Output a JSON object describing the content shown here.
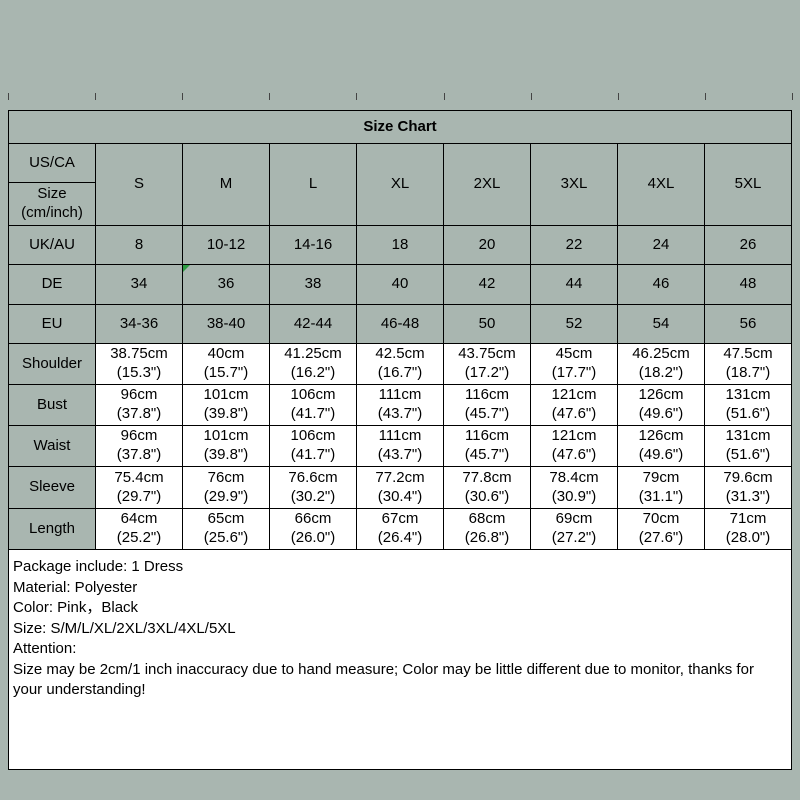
{
  "chart_data": {
    "type": "table",
    "title": "Size Chart",
    "corner_top": "US/CA",
    "corner_bottom": "Size\n(cm/inch)",
    "size_columns": [
      "S",
      "M",
      "L",
      "XL",
      "2XL",
      "3XL",
      "4XL",
      "5XL"
    ],
    "rows": [
      {
        "label": "UK/AU",
        "shaded": true,
        "values": [
          "8",
          "10-12",
          "14-16",
          "18",
          "20",
          "22",
          "24",
          "26"
        ]
      },
      {
        "label": "DE",
        "shaded": true,
        "marker_col": 1,
        "values": [
          "34",
          "36",
          "38",
          "40",
          "42",
          "44",
          "46",
          "48"
        ]
      },
      {
        "label": "EU",
        "shaded": true,
        "values": [
          "34-36",
          "38-40",
          "42-44",
          "46-48",
          "50",
          "52",
          "54",
          "56"
        ]
      },
      {
        "label": "Shoulder",
        "shaded": false,
        "values": [
          "38.75cm\n(15.3\")",
          "40cm\n(15.7\")",
          "41.25cm\n(16.2\")",
          "42.5cm\n(16.7\")",
          "43.75cm\n(17.2\")",
          "45cm\n(17.7\")",
          "46.25cm\n(18.2\")",
          "47.5cm\n(18.7\")"
        ]
      },
      {
        "label": "Bust",
        "shaded": false,
        "values": [
          "96cm\n(37.8\")",
          "101cm\n(39.8\")",
          "106cm\n(41.7\")",
          "111cm\n(43.7\")",
          "116cm\n(45.7\")",
          "121cm\n(47.6\")",
          "126cm\n(49.6\")",
          "131cm\n(51.6\")"
        ]
      },
      {
        "label": "Waist",
        "shaded": false,
        "values": [
          "96cm\n(37.8\")",
          "101cm\n(39.8\")",
          "106cm\n(41.7\")",
          "111cm\n(43.7\")",
          "116cm\n(45.7\")",
          "121cm\n(47.6\")",
          "126cm\n(49.6\")",
          "131cm\n(51.6\")"
        ]
      },
      {
        "label": "Sleeve",
        "shaded": false,
        "values": [
          "75.4cm\n(29.7\")",
          "76cm\n(29.9\")",
          "76.6cm\n(30.2\")",
          "77.2cm\n(30.4\")",
          "77.8cm\n(30.6\")",
          "78.4cm\n(30.9\")",
          "79cm\n(31.1\")",
          "79.6cm\n(31.3\")"
        ]
      },
      {
        "label": "Length",
        "shaded": false,
        "values": [
          "64cm\n(25.2\")",
          "65cm\n(25.6\")",
          "66cm\n(26.0\")",
          "67cm\n(26.4\")",
          "68cm\n(26.8\")",
          "69cm\n(27.2\")",
          "70cm\n(27.6\")",
          "71cm\n(28.0\")"
        ]
      }
    ]
  },
  "notes": {
    "lines": [
      "Package include: 1 Dress",
      "Material: Polyester",
      "Color: Pink，Black",
      "Size: S/M/L/XL/2XL/3XL/4XL/5XL",
      "Attention:",
      "Size may be 2cm/1 inch inaccuracy due to hand measure; Color may be little different due to monitor, thanks for your understanding!"
    ]
  },
  "colors": {
    "background": "#a9b6b0",
    "cell_white": "#ffffff",
    "border": "#000000",
    "marker_green": "#2f9e44"
  }
}
